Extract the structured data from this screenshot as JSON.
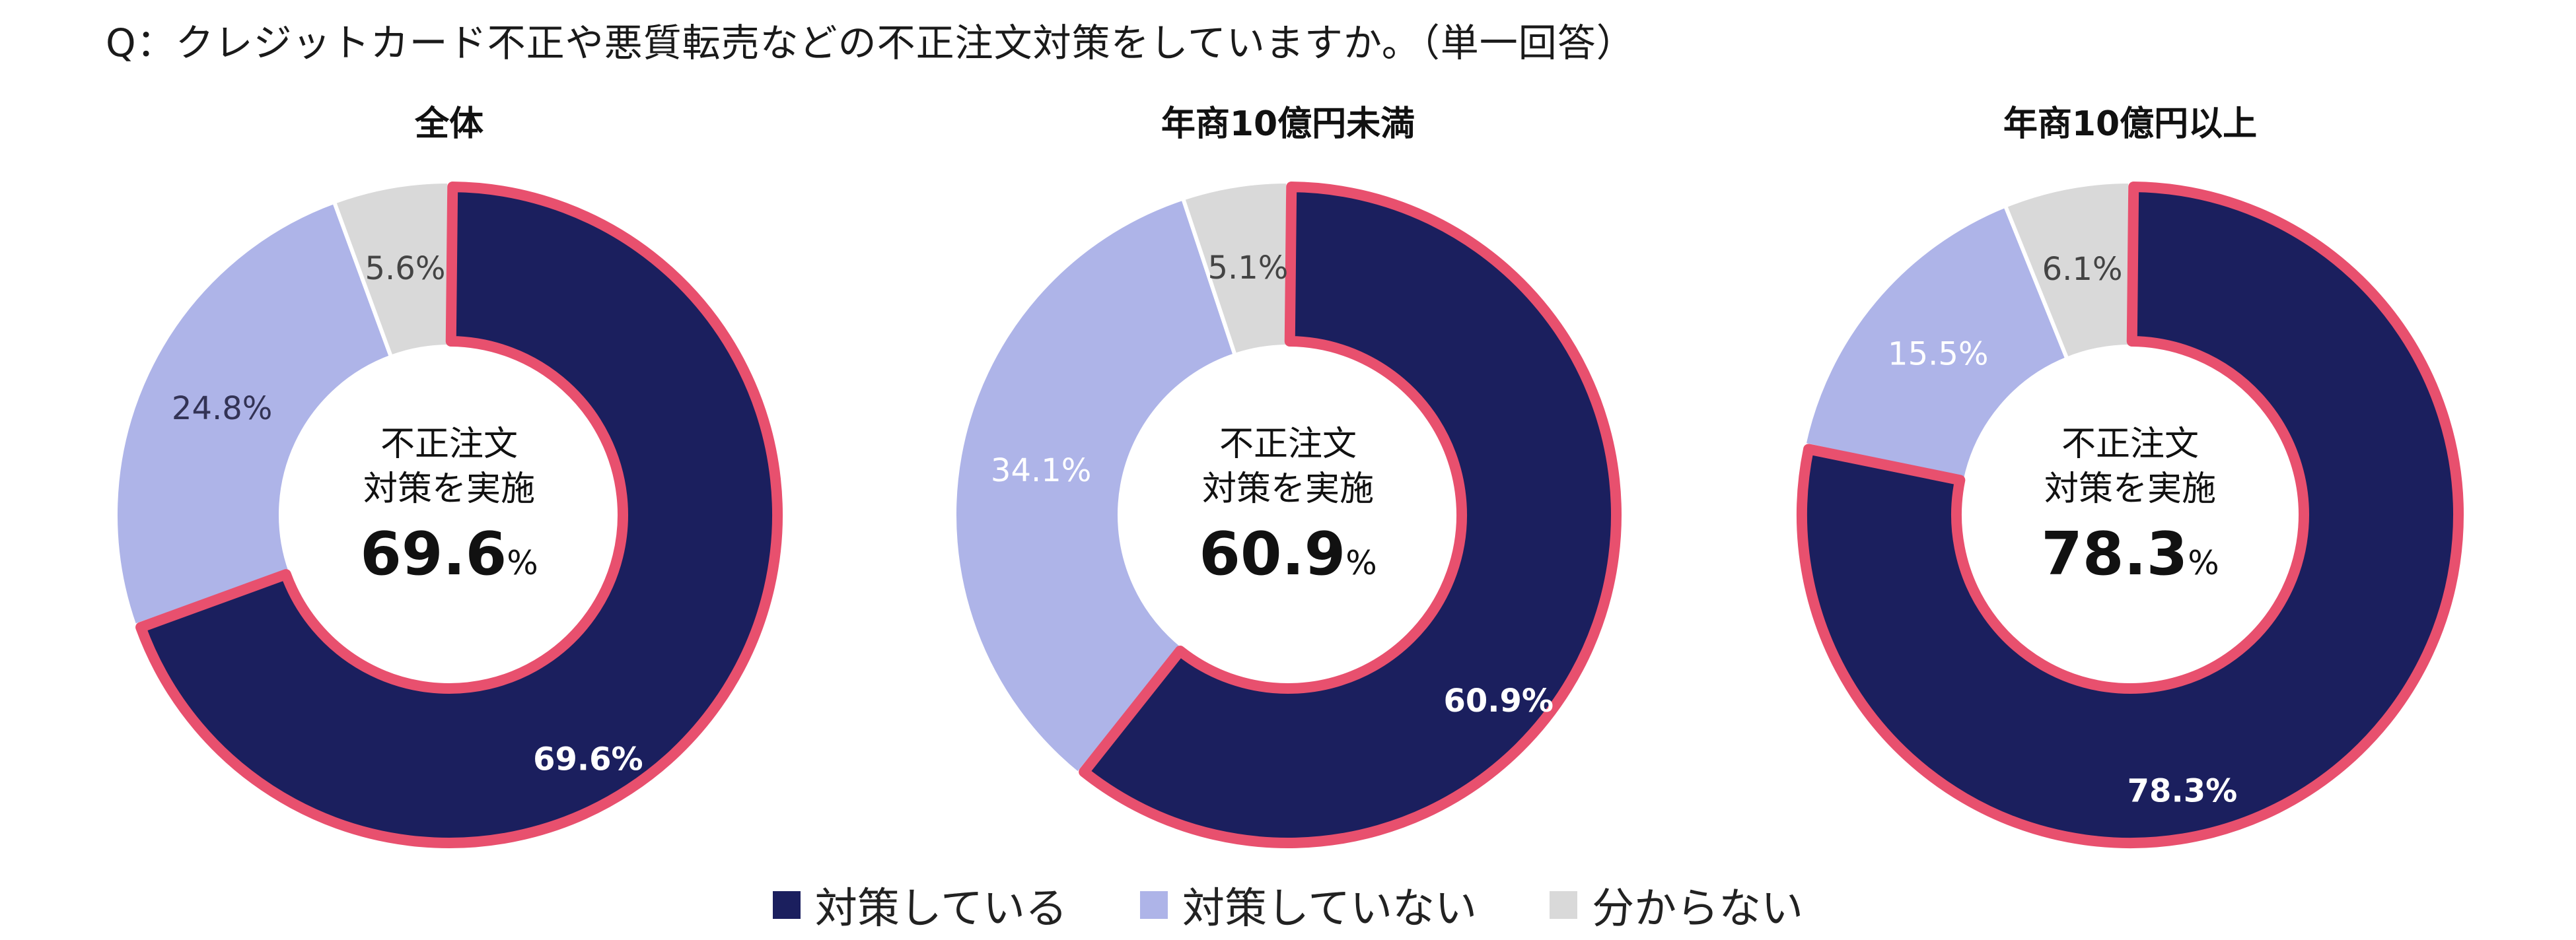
{
  "question": "Q：クレジットカード不正や悪質転売などの不正注文対策をしていますか。（単一回答）",
  "colors": {
    "implemented": "#1b1f5e",
    "not_implemented": "#aeb4e8",
    "unknown": "#d9d9d9",
    "highlight": "#e8506e"
  },
  "legend": [
    {
      "label": "対策している",
      "color": "#1b1f5e"
    },
    {
      "label": "対策していない",
      "color": "#aeb4e8"
    },
    {
      "label": "分からない",
      "color": "#d9d9d9"
    }
  ],
  "center_caption_line1": "不正注文",
  "center_caption_line2": "対策を実施",
  "center_unit": "%",
  "chart_data": [
    {
      "type": "pie",
      "title": "全体",
      "categories": [
        "対策している",
        "対策していない",
        "分からない"
      ],
      "values": [
        69.6,
        24.8,
        5.6
      ],
      "labels": [
        "69.6%",
        "24.8%",
        "5.6%"
      ],
      "center_value": "69.6"
    },
    {
      "type": "pie",
      "title": "年商10億円未満",
      "categories": [
        "対策している",
        "対策していない",
        "分からない"
      ],
      "values": [
        60.9,
        34.1,
        5.1
      ],
      "labels": [
        "60.9%",
        "34.1%",
        "5.1%"
      ],
      "center_value": "60.9"
    },
    {
      "type": "pie",
      "title": "年商10億円以上",
      "categories": [
        "対策している",
        "対策していない",
        "分からない"
      ],
      "values": [
        78.3,
        15.5,
        6.1
      ],
      "labels": [
        "78.3%",
        "15.5%",
        "6.1%"
      ],
      "center_value": "78.3"
    }
  ]
}
